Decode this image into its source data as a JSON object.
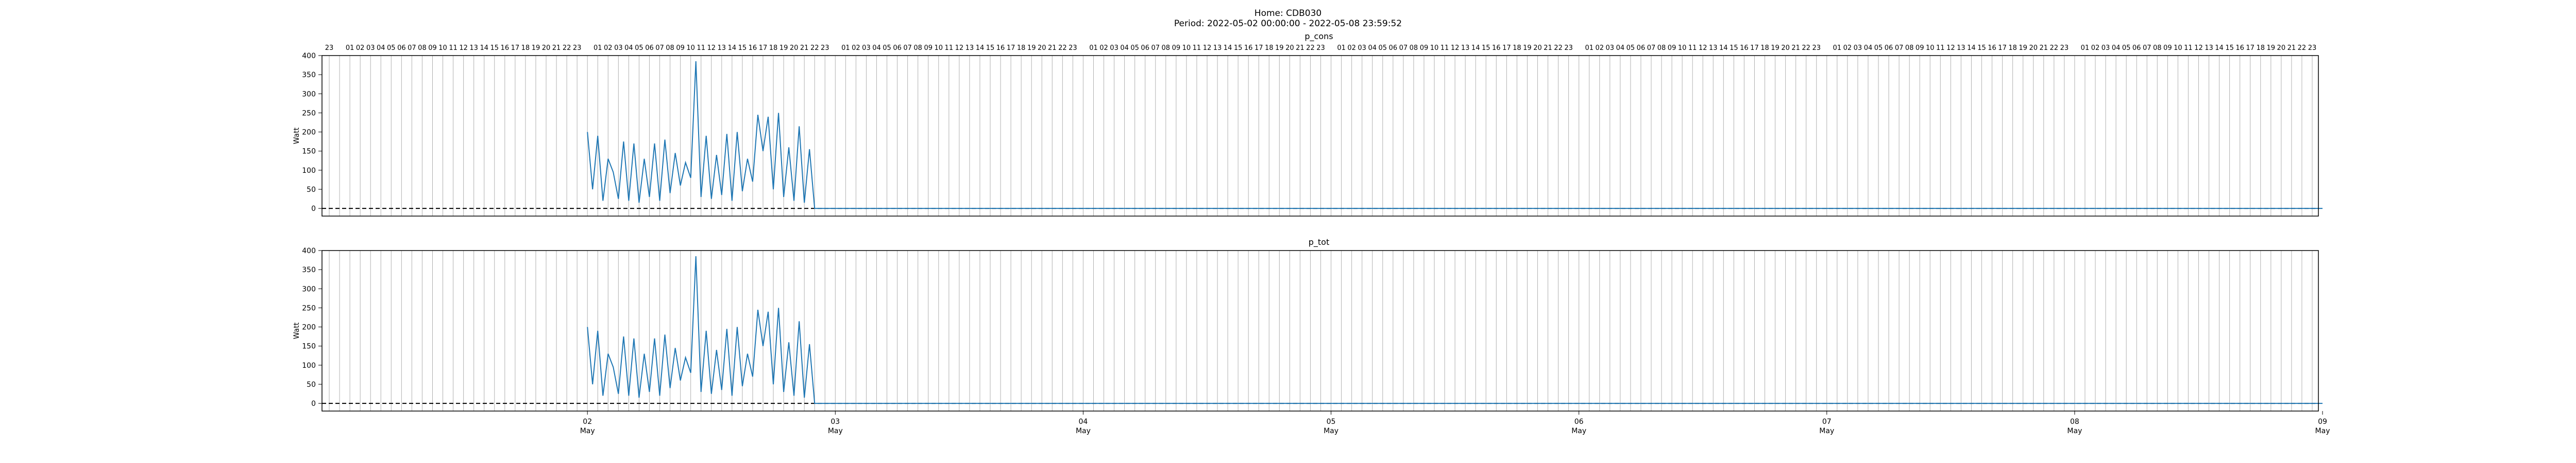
{
  "figure": {
    "title_line1": "Home: CDB030",
    "title_line2": "Period: 2022-05-02 00:00:00 - 2022-05-08 23:59:52"
  },
  "colors": {
    "series": "#1f77b4",
    "grid": "#b0b0b0",
    "zero_line": "#000000"
  },
  "chart_data": [
    {
      "type": "line",
      "title": "p_cons",
      "ylabel": "Watt",
      "ylim": [
        -20,
        400
      ],
      "yticks": [
        0,
        50,
        100,
        150,
        200,
        250,
        300,
        350,
        400
      ],
      "xlim_hours": [
        -25.7,
        167.6
      ],
      "hour_tick_labels": [
        "16",
        "17",
        "18",
        "19",
        "20",
        "21",
        "22",
        "23",
        "",
        "01",
        "02",
        "03",
        "04",
        "05",
        "06",
        "07",
        "08",
        "09",
        "10",
        "11",
        "12",
        "13",
        "14",
        "15",
        "16",
        "17",
        "18",
        "19",
        "20",
        "21",
        "22",
        "23"
      ],
      "series": [
        {
          "points": [
            [
              0,
              200
            ],
            [
              0.5,
              50
            ],
            [
              1,
              190
            ],
            [
              1.5,
              20
            ],
            [
              2,
              130
            ],
            [
              2.5,
              95
            ],
            [
              3,
              25
            ],
            [
              3.5,
              175
            ],
            [
              4,
              20
            ],
            [
              4.5,
              170
            ],
            [
              5,
              15
            ],
            [
              5.5,
              130
            ],
            [
              6,
              30
            ],
            [
              6.5,
              170
            ],
            [
              7,
              20
            ],
            [
              7.5,
              180
            ],
            [
              8,
              40
            ],
            [
              8.5,
              145
            ],
            [
              9,
              60
            ],
            [
              9.5,
              120
            ],
            [
              10,
              80
            ],
            [
              10.5,
              385
            ],
            [
              11,
              30
            ],
            [
              11.5,
              190
            ],
            [
              12,
              25
            ],
            [
              12.5,
              140
            ],
            [
              13,
              35
            ],
            [
              13.5,
              195
            ],
            [
              14,
              20
            ],
            [
              14.5,
              200
            ],
            [
              15,
              45
            ],
            [
              15.5,
              130
            ],
            [
              16,
              70
            ],
            [
              16.5,
              245
            ],
            [
              17,
              150
            ],
            [
              17.5,
              240
            ],
            [
              18,
              50
            ],
            [
              18.5,
              250
            ],
            [
              19,
              30
            ],
            [
              19.5,
              160
            ],
            [
              20,
              20
            ],
            [
              20.5,
              215
            ],
            [
              21,
              15
            ],
            [
              21.5,
              155
            ],
            [
              22,
              0
            ],
            [
              168,
              0
            ]
          ]
        }
      ]
    },
    {
      "type": "line",
      "title": "p_tot",
      "ylabel": "Watt",
      "ylim": [
        -20,
        400
      ],
      "yticks": [
        0,
        50,
        100,
        150,
        200,
        250,
        300,
        350,
        400
      ],
      "xlim_hours": [
        -25.7,
        167.6
      ],
      "xticks": [
        {
          "day": "02",
          "month": "May",
          "hour": 0
        },
        {
          "day": "03",
          "month": "May",
          "hour": 24
        },
        {
          "day": "04",
          "month": "May",
          "hour": 48
        },
        {
          "day": "05",
          "month": "May",
          "hour": 72
        },
        {
          "day": "06",
          "month": "May",
          "hour": 96
        },
        {
          "day": "07",
          "month": "May",
          "hour": 120
        },
        {
          "day": "08",
          "month": "May",
          "hour": 144
        },
        {
          "day": "09",
          "month": "May",
          "hour": 168
        }
      ],
      "series": [
        {
          "points": [
            [
              0,
              200
            ],
            [
              0.5,
              50
            ],
            [
              1,
              190
            ],
            [
              1.5,
              20
            ],
            [
              2,
              130
            ],
            [
              2.5,
              95
            ],
            [
              3,
              25
            ],
            [
              3.5,
              175
            ],
            [
              4,
              20
            ],
            [
              4.5,
              170
            ],
            [
              5,
              15
            ],
            [
              5.5,
              130
            ],
            [
              6,
              30
            ],
            [
              6.5,
              170
            ],
            [
              7,
              20
            ],
            [
              7.5,
              180
            ],
            [
              8,
              40
            ],
            [
              8.5,
              145
            ],
            [
              9,
              60
            ],
            [
              9.5,
              120
            ],
            [
              10,
              80
            ],
            [
              10.5,
              385
            ],
            [
              11,
              30
            ],
            [
              11.5,
              190
            ],
            [
              12,
              25
            ],
            [
              12.5,
              140
            ],
            [
              13,
              35
            ],
            [
              13.5,
              195
            ],
            [
              14,
              20
            ],
            [
              14.5,
              200
            ],
            [
              15,
              45
            ],
            [
              15.5,
              130
            ],
            [
              16,
              70
            ],
            [
              16.5,
              245
            ],
            [
              17,
              150
            ],
            [
              17.5,
              240
            ],
            [
              18,
              50
            ],
            [
              18.5,
              250
            ],
            [
              19,
              30
            ],
            [
              19.5,
              160
            ],
            [
              20,
              20
            ],
            [
              20.5,
              215
            ],
            [
              21,
              15
            ],
            [
              21.5,
              155
            ],
            [
              22,
              0
            ],
            [
              168,
              0
            ]
          ]
        }
      ]
    }
  ]
}
